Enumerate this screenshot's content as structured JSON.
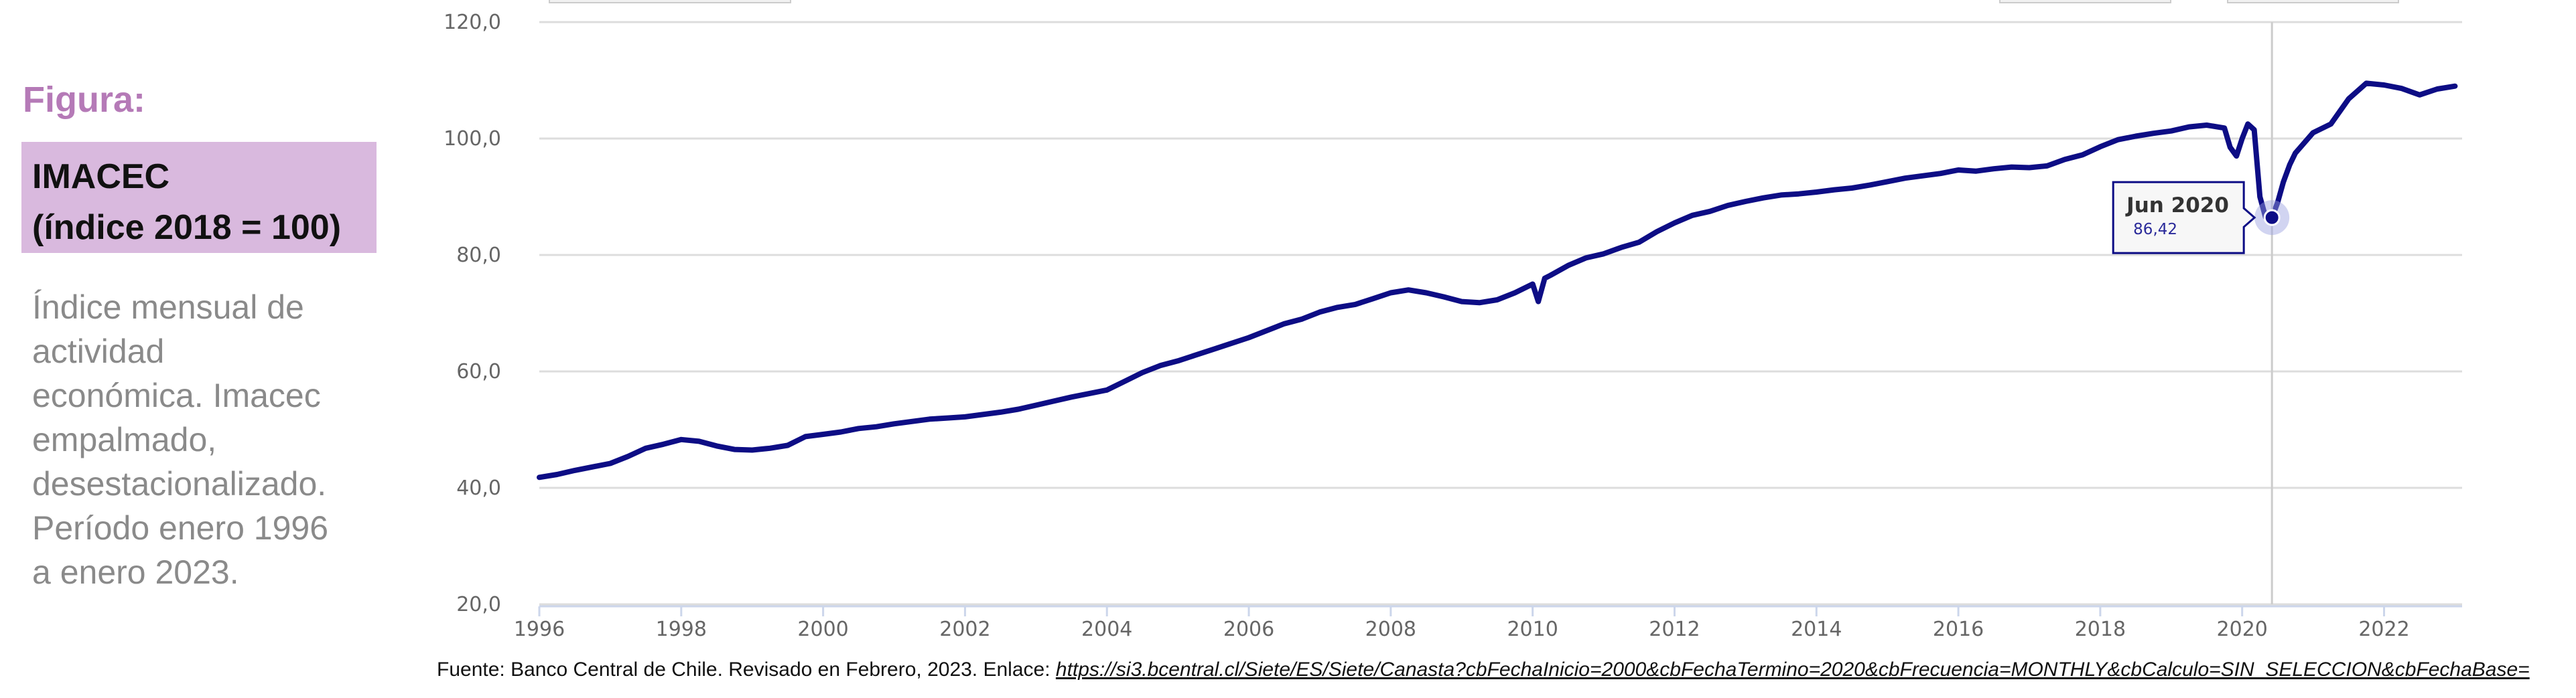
{
  "side_panel": {
    "figure_label": "Figura:",
    "title_lines": [
      "IMACEC",
      "(índice 2018 = 100)"
    ],
    "description_lines": [
      "Índice mensual de",
      "actividad",
      "económica. Imacec",
      "empalmado,",
      "desestacionalizado.",
      "Período enero 1996",
      "a enero 2023."
    ]
  },
  "source": {
    "prefix": "Fuente:  Banco Central de Chile. Revisado en Febrero, 2023. Enlace: ",
    "link": "https://si3.bcentral.cl/Siete/ES/Siete/Canasta?cbFechaInicio=2000&cbFechaTermino=2020&cbFrecuencia=MONTHLY&cbCalculo=SIN_SELECCION&cbFechaBase="
  },
  "colors": {
    "line": "#0d0d85",
    "grid": "#dddddd",
    "figure_label": "#b57ab7",
    "title_box": "#d9b9de"
  },
  "chart_data": {
    "type": "line",
    "title": "",
    "xlabel": "",
    "ylabel": "",
    "xlim": [
      1996,
      2023.1
    ],
    "ylim": [
      20,
      120
    ],
    "y_ticks": [
      "20,0",
      "40,0",
      "60,0",
      "80,0",
      "100,0",
      "120,0"
    ],
    "x_ticks": [
      "1996",
      "1998",
      "2000",
      "2002",
      "2004",
      "2006",
      "2008",
      "2010",
      "2012",
      "2014",
      "2016",
      "2018",
      "2020",
      "2022"
    ],
    "grid": true,
    "legend": "none",
    "tooltip": {
      "label": "Jun 2020",
      "value": "86,42",
      "x": 2020.42,
      "y": 86.42
    },
    "series": [
      {
        "x": [
          1996.0,
          1996.25,
          1996.5,
          1996.75,
          1997.0,
          1997.25,
          1997.5,
          1997.75,
          1998.0,
          1998.25,
          1998.5,
          1998.75,
          1999.0,
          1999.25,
          1999.5,
          1999.75,
          2000.0,
          2000.25,
          2000.5,
          2000.75,
          2001.0,
          2001.25,
          2001.5,
          2001.75,
          2002.0,
          2002.25,
          2002.5,
          2002.75,
          2003.0,
          2003.25,
          2003.5,
          2003.75,
          2004.0,
          2004.25,
          2004.5,
          2004.75,
          2005.0,
          2005.25,
          2005.5,
          2005.75,
          2006.0,
          2006.25,
          2006.5,
          2006.75,
          2007.0,
          2007.25,
          2007.5,
          2007.75,
          2008.0,
          2008.25,
          2008.5,
          2008.75,
          2009.0,
          2009.25,
          2009.5,
          2009.75,
          2010.0,
          2010.08,
          2010.17,
          2010.25,
          2010.5,
          2010.75,
          2011.0,
          2011.25,
          2011.5,
          2011.75,
          2012.0,
          2012.25,
          2012.5,
          2012.75,
          2013.0,
          2013.25,
          2013.5,
          2013.75,
          2014.0,
          2014.25,
          2014.5,
          2014.75,
          2015.0,
          2015.25,
          2015.5,
          2015.75,
          2016.0,
          2016.25,
          2016.5,
          2016.75,
          2017.0,
          2017.25,
          2017.5,
          2017.75,
          2018.0,
          2018.25,
          2018.5,
          2018.75,
          2019.0,
          2019.25,
          2019.5,
          2019.75,
          2019.83,
          2019.92,
          2020.0,
          2020.08,
          2020.17,
          2020.25,
          2020.33,
          2020.42,
          2020.5,
          2020.58,
          2020.67,
          2020.75,
          2021.0,
          2021.25,
          2021.5,
          2021.75,
          2022.0,
          2022.25,
          2022.5,
          2022.75,
          2023.0
        ],
        "y": [
          41.8,
          42.3,
          43.0,
          43.6,
          44.2,
          45.4,
          46.8,
          47.5,
          48.3,
          48.0,
          47.2,
          46.6,
          46.5,
          46.8,
          47.3,
          48.8,
          49.2,
          49.6,
          50.2,
          50.5,
          51.0,
          51.4,
          51.8,
          52.0,
          52.2,
          52.6,
          53.0,
          53.5,
          54.2,
          54.9,
          55.6,
          56.2,
          56.8,
          58.3,
          59.8,
          61.0,
          61.8,
          62.8,
          63.8,
          64.8,
          65.8,
          67.0,
          68.2,
          69.0,
          70.2,
          71.0,
          71.5,
          72.5,
          73.5,
          74.0,
          73.5,
          72.8,
          72.0,
          71.8,
          72.3,
          73.5,
          75.0,
          72.0,
          76.0,
          76.5,
          78.2,
          79.5,
          80.2,
          81.3,
          82.2,
          84.0,
          85.5,
          86.8,
          87.5,
          88.5,
          89.2,
          89.8,
          90.3,
          90.5,
          90.8,
          91.2,
          91.5,
          92.0,
          92.6,
          93.2,
          93.6,
          94.0,
          94.6,
          94.4,
          94.8,
          95.1,
          95.0,
          95.3,
          96.4,
          97.2,
          98.6,
          99.8,
          100.4,
          100.9,
          101.3,
          102.0,
          102.3,
          101.8,
          98.5,
          97.0,
          100.0,
          102.5,
          101.5,
          90.0,
          86.5,
          86.42,
          89.0,
          92.5,
          95.5,
          97.5,
          101.0,
          102.5,
          106.8,
          109.5,
          109.2,
          108.6,
          107.5,
          108.5,
          109.0
        ]
      }
    ]
  }
}
